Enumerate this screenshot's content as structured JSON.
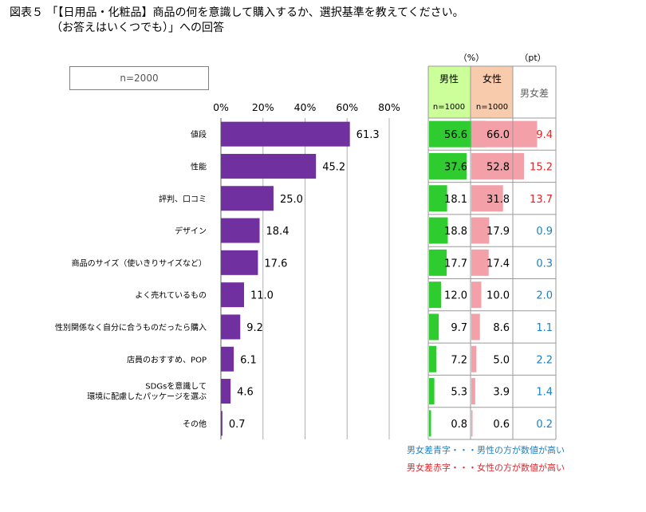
{
  "title": {
    "line1": "図表５ 「【日用品・化粧品】商品の何を意識して購入するか、選択基準を教えてください。",
    "line2": "（お答えはいくつでも）」への回答"
  },
  "sample_label": "n=2000",
  "colors": {
    "bar": "#7030a0",
    "male_bar": "#2ecc2e",
    "female_bar": "#f4a0a8",
    "male_header": "#ccff99",
    "female_header": "#f8cbad",
    "diff_blue": "#1f7fc1",
    "diff_red": "#e0262a"
  },
  "chart_data": {
    "type": "bar",
    "orientation": "horizontal",
    "xlim": [
      0,
      80
    ],
    "x_ticks": [
      "0%",
      "20%",
      "40%",
      "60%",
      "80%"
    ],
    "categories": [
      "値段",
      "性能",
      "評判、口コミ",
      "デザイン",
      "商品のサイズ（使いきりサイズなど）",
      "よく売れているもの",
      "性別関係なく自分に合うものだったら購入",
      "店員のおすすめ、POP",
      "SDGsを意識して\n環境に配慮したパッケージを選ぶ",
      "その他"
    ],
    "values": [
      61.3,
      45.2,
      25.0,
      18.4,
      17.6,
      11.0,
      9.2,
      6.1,
      4.6,
      0.7
    ],
    "value_labels": [
      "61.3",
      "45.2",
      "25.0",
      "18.4",
      "17.6",
      "11.0",
      "9.2",
      "6.1",
      "4.6",
      "0.7"
    ]
  },
  "table": {
    "unit_pct": "（%）",
    "unit_pt": "（pt）",
    "male_header": "男性",
    "female_header": "女性",
    "male_n": "n=1000",
    "female_n": "n=1000",
    "diff_header": "男女差",
    "rows": [
      {
        "male": 56.6,
        "female": 66.0,
        "male_label": "56.6",
        "female_label": "66.0",
        "diff": "9.4",
        "diff_color": "red"
      },
      {
        "male": 37.6,
        "female": 52.8,
        "male_label": "37.6",
        "female_label": "52.8",
        "diff": "15.2",
        "diff_color": "red"
      },
      {
        "male": 18.1,
        "female": 31.8,
        "male_label": "18.1",
        "female_label": "31.8",
        "diff": "13.7",
        "diff_color": "red"
      },
      {
        "male": 18.8,
        "female": 17.9,
        "male_label": "18.8",
        "female_label": "17.9",
        "diff": "0.9",
        "diff_color": "blue"
      },
      {
        "male": 17.7,
        "female": 17.4,
        "male_label": "17.7",
        "female_label": "17.4",
        "diff": "0.3",
        "diff_color": "blue"
      },
      {
        "male": 12.0,
        "female": 10.0,
        "male_label": "12.0",
        "female_label": "10.0",
        "diff": "2.0",
        "diff_color": "blue"
      },
      {
        "male": 9.7,
        "female": 8.6,
        "male_label": "9.7",
        "female_label": "8.6",
        "diff": "1.1",
        "diff_color": "blue"
      },
      {
        "male": 7.2,
        "female": 5.0,
        "male_label": "7.2",
        "female_label": "5.0",
        "diff": "2.2",
        "diff_color": "blue"
      },
      {
        "male": 5.3,
        "female": 3.9,
        "male_label": "5.3",
        "female_label": "3.9",
        "diff": "1.4",
        "diff_color": "blue"
      },
      {
        "male": 0.8,
        "female": 0.6,
        "male_label": "0.8",
        "female_label": "0.6",
        "diff": "0.2",
        "diff_color": "blue"
      }
    ]
  },
  "legend": {
    "blue_note": "男女差青字・・・男性の方が数値が高い",
    "red_note": "男女差赤字・・・女性の方が数値が高い"
  }
}
